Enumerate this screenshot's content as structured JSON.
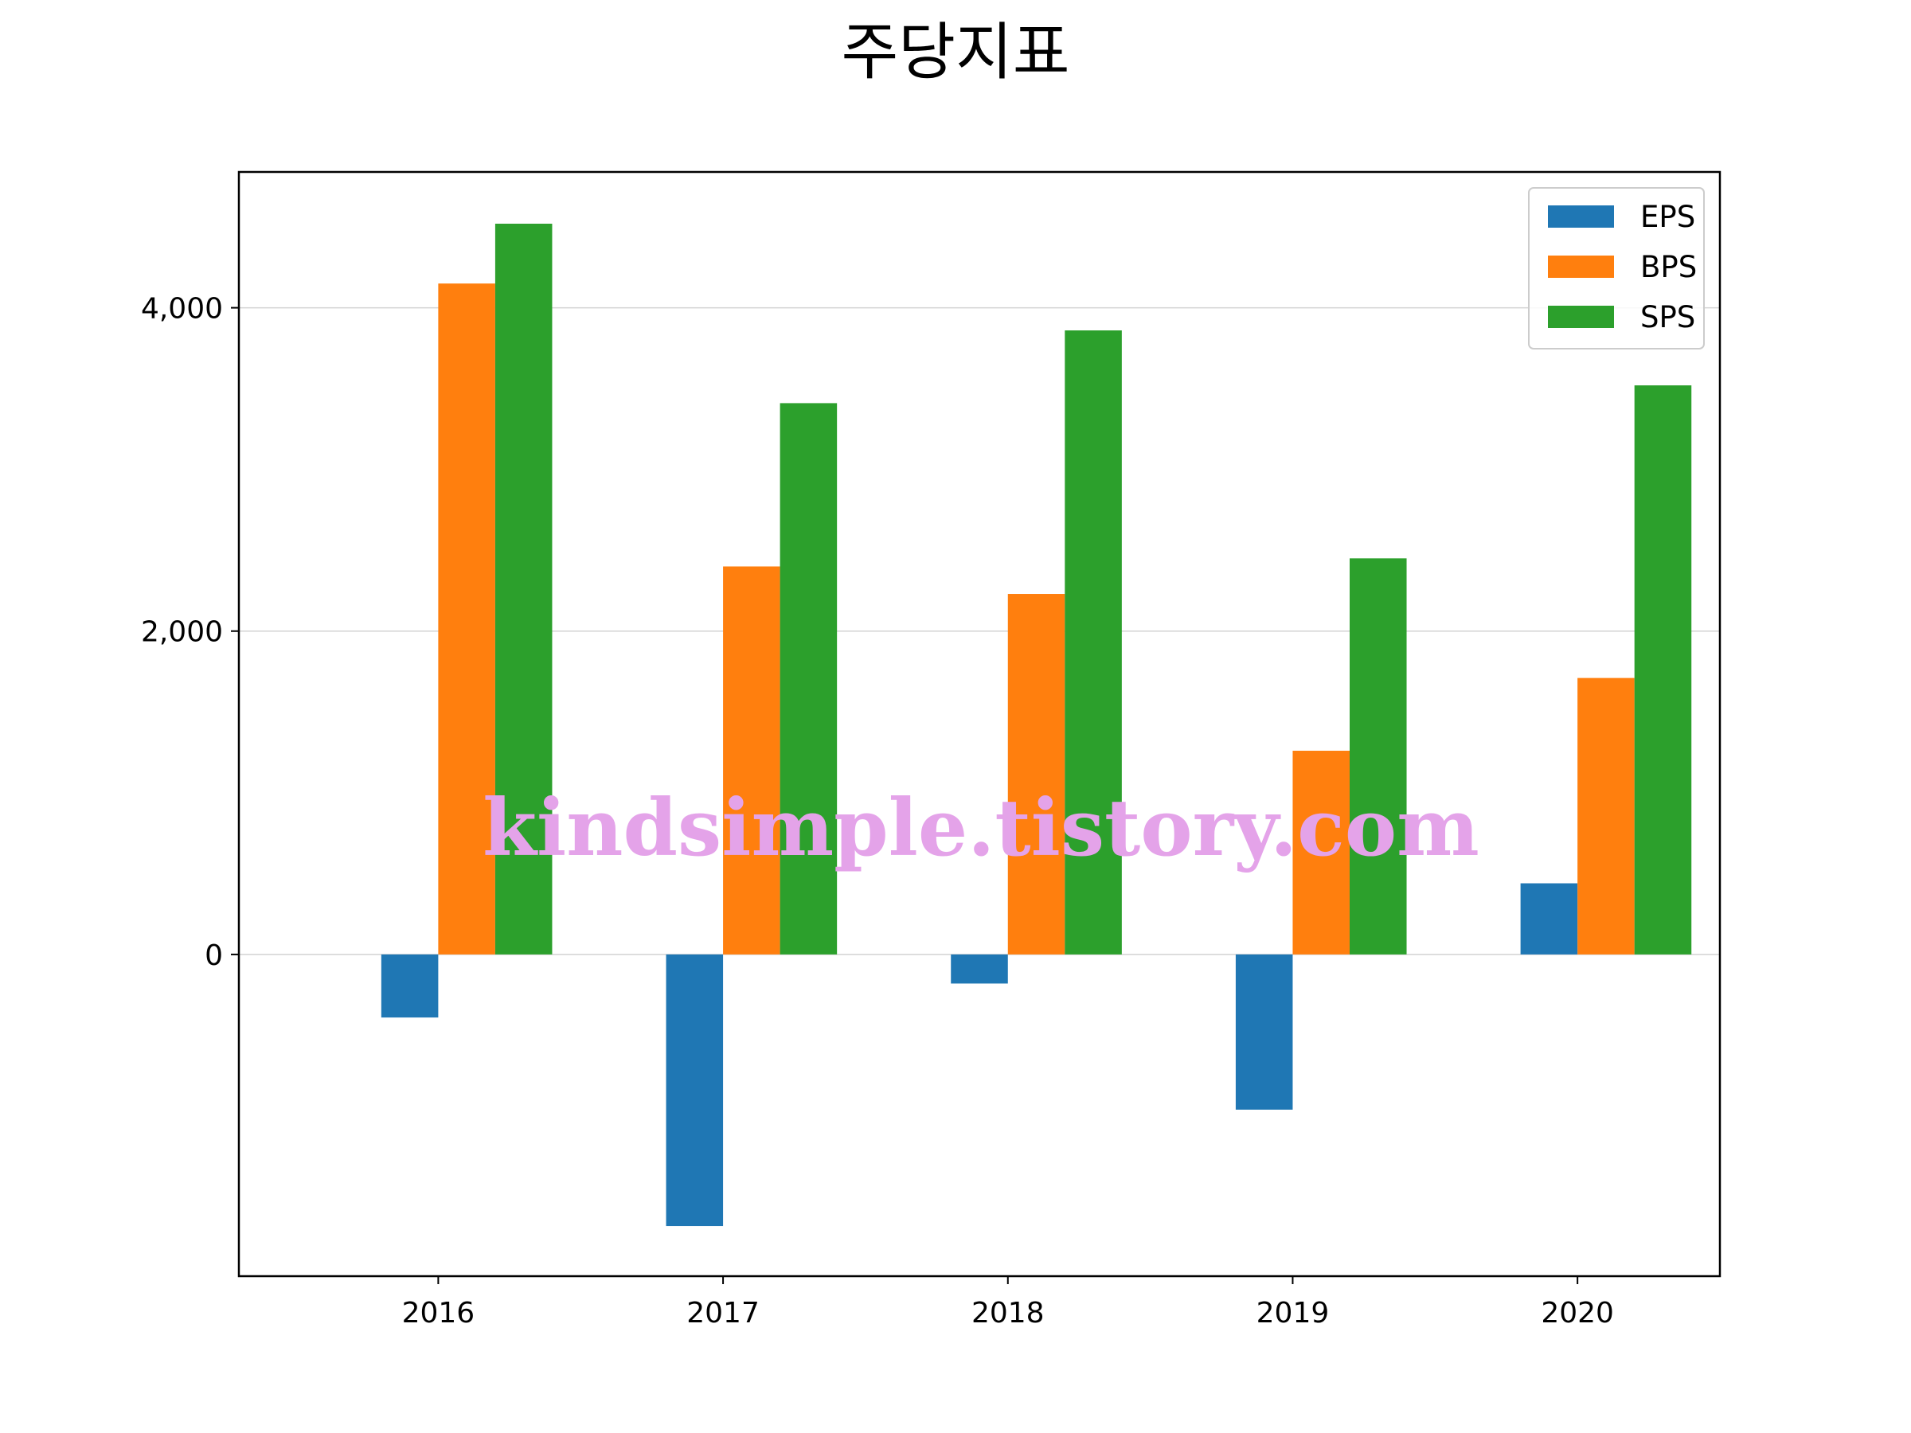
{
  "chart_data": {
    "type": "bar",
    "title": "주당지표",
    "xlabel": "",
    "ylabel": "",
    "categories": [
      "2016",
      "2017",
      "2018",
      "2019",
      "2020"
    ],
    "series": [
      {
        "name": "EPS",
        "values": [
          -390,
          -1680,
          -180,
          -960,
          440
        ],
        "color": "#1f77b4"
      },
      {
        "name": "BPS",
        "values": [
          4150,
          2400,
          2230,
          1260,
          1710
        ],
        "color": "#ff7f0e"
      },
      {
        "name": "SPS",
        "values": [
          4520,
          3410,
          3860,
          2450,
          3520
        ],
        "color": "#2ca02c"
      }
    ],
    "ylim": [
      -1990,
      4840
    ],
    "yticks": [
      0,
      2000,
      4000
    ],
    "ytick_labels": [
      "0",
      "2,000",
      "4,000"
    ],
    "grid": true,
    "legend_position": "upper right",
    "watermark": "kindsimple.tistory.com"
  }
}
